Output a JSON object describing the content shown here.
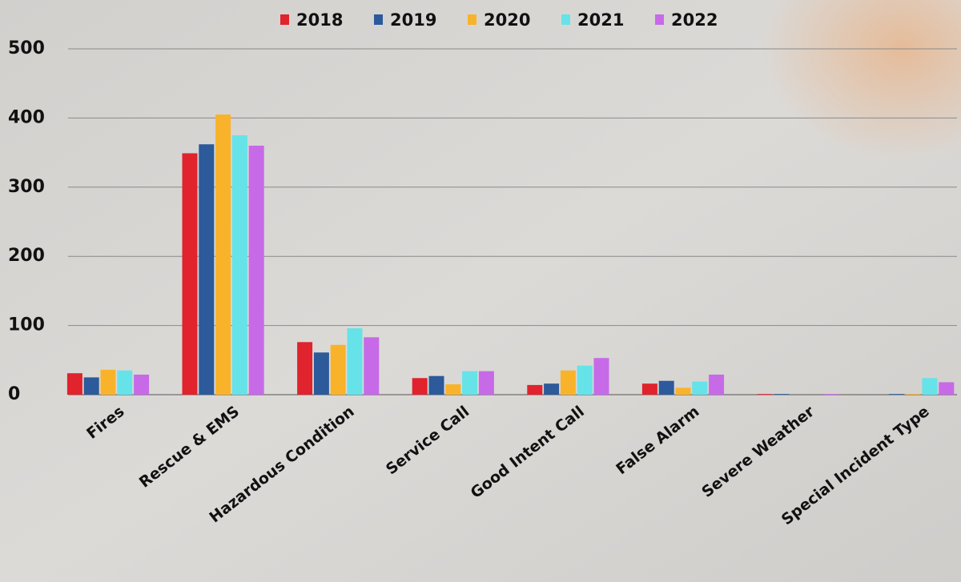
{
  "chart_data": {
    "type": "bar",
    "categories": [
      "Fires",
      "Rescue & EMS",
      "Hazardous Condition",
      "Service Call",
      "Good Intent Call",
      "False Alarm",
      "Severe Weather",
      "Special Incident Type"
    ],
    "series": [
      {
        "name": "2018",
        "color": "#e0232c",
        "values": [
          31,
          349,
          76,
          24,
          14,
          16,
          1,
          0
        ]
      },
      {
        "name": "2019",
        "color": "#2c5a9a",
        "values": [
          25,
          362,
          61,
          27,
          16,
          20,
          1,
          1
        ]
      },
      {
        "name": "2020",
        "color": "#f9b32a",
        "values": [
          36,
          405,
          72,
          15,
          35,
          10,
          0,
          1
        ]
      },
      {
        "name": "2021",
        "color": "#66e3e8",
        "values": [
          35,
          375,
          96,
          34,
          42,
          19,
          0,
          24
        ]
      },
      {
        "name": "2022",
        "color": "#c76ae8",
        "values": [
          29,
          360,
          83,
          34,
          53,
          29,
          1,
          18
        ]
      }
    ],
    "ylim": [
      0,
      500
    ],
    "yticks": [
      0,
      100,
      200,
      300,
      400,
      500
    ],
    "grid": true,
    "legend": "top"
  }
}
